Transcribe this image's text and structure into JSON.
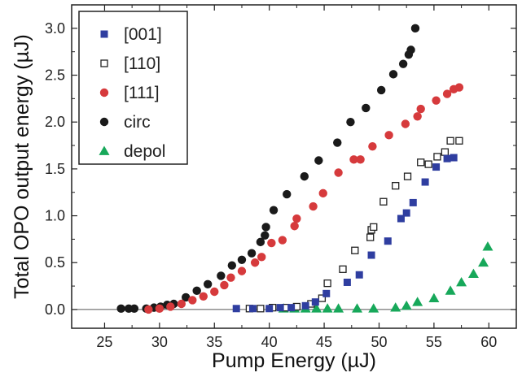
{
  "chart_data": {
    "type": "scatter",
    "xlabel": "Pump Energy (µJ)",
    "ylabel": "Total OPO output energy (µJ)",
    "xlim": [
      22,
      62.5
    ],
    "ylim": [
      -0.2,
      3.25
    ],
    "xticks": [
      "25",
      "30",
      "35",
      "40",
      "45",
      "50",
      "55",
      "60"
    ],
    "yticks": [
      "0.0",
      "0.5",
      "1.0",
      "1.5",
      "2.0",
      "2.5",
      "3.0"
    ],
    "grid": false,
    "legend_position": "top-left",
    "zero_line": true,
    "series": [
      {
        "name": "[001]",
        "marker": "square-filled",
        "color": "#2f3ea0",
        "x": [
          37,
          38.5,
          40,
          41,
          42,
          43.3,
          44.2,
          45.2,
          47.1,
          48.2,
          49.3,
          50.8,
          52.0,
          52.5,
          53.1,
          54.2,
          55.2,
          56.2,
          56.8
        ],
        "y": [
          0.01,
          0.01,
          0.01,
          0.02,
          0.02,
          0.04,
          0.08,
          0.17,
          0.29,
          0.37,
          0.58,
          0.73,
          0.97,
          1.03,
          1.14,
          1.36,
          1.52,
          1.61,
          1.62
        ]
      },
      {
        "name": "[110]",
        "marker": "square-open",
        "color": "#222222",
        "x": [
          38.2,
          39.2,
          40.3,
          41.5,
          42.5,
          43.8,
          44.8,
          45.3,
          46.7,
          47.8,
          49.2,
          49.3,
          49.5,
          50.4,
          51.5,
          52.6,
          53.8,
          54.5,
          55.3,
          56.0,
          56.5,
          57.3
        ],
        "y": [
          0.01,
          0.01,
          0.02,
          0.02,
          0.03,
          0.06,
          0.12,
          0.28,
          0.43,
          0.63,
          0.77,
          0.85,
          0.88,
          1.15,
          1.32,
          1.42,
          1.57,
          1.55,
          1.63,
          1.68,
          1.8,
          1.8
        ]
      },
      {
        "name": "[111]",
        "marker": "circle",
        "color": "#d63a3c",
        "x": [
          29,
          30,
          31,
          32,
          33,
          34,
          35,
          35.9,
          36.5,
          37.5,
          38.7,
          39.3,
          40.2,
          41.2,
          42.3,
          42.5,
          44,
          44.9,
          46.3,
          47.7,
          48.3,
          49.4,
          50.9,
          52.4,
          53.5,
          53.8,
          55.2,
          56.2,
          56.8,
          57.3
        ],
        "y": [
          0.0,
          0.01,
          0.03,
          0.06,
          0.1,
          0.14,
          0.19,
          0.26,
          0.34,
          0.41,
          0.5,
          0.56,
          0.71,
          0.74,
          0.89,
          0.97,
          1.1,
          1.24,
          1.46,
          1.6,
          1.6,
          1.74,
          1.86,
          1.98,
          2.06,
          2.14,
          2.23,
          2.3,
          2.35,
          2.37
        ]
      },
      {
        "name": "circ",
        "marker": "circle",
        "color": "#1a1a1a",
        "x": [
          26.5,
          27.2,
          27.7,
          28.8,
          29.5,
          30.1,
          30.7,
          31.3,
          32.4,
          33.4,
          34.4,
          35.6,
          36.6,
          37.5,
          38.4,
          39.2,
          39.6,
          39.7,
          40.4,
          41.6,
          43.2,
          44.5,
          46.2,
          47.4,
          48.8,
          50.2,
          51.3,
          52.2,
          52.7,
          52.9,
          53.3
        ],
        "y": [
          0.01,
          0.01,
          0.01,
          0.01,
          0.02,
          0.03,
          0.05,
          0.06,
          0.13,
          0.2,
          0.27,
          0.36,
          0.47,
          0.53,
          0.6,
          0.72,
          0.79,
          0.88,
          1.06,
          1.23,
          1.42,
          1.59,
          1.78,
          2.0,
          2.15,
          2.34,
          2.51,
          2.62,
          2.72,
          2.77,
          3.0
        ]
      },
      {
        "name": "depol",
        "marker": "triangle",
        "color": "#17a85a",
        "x": [
          41.3,
          42.3,
          43.3,
          44.3,
          45.3,
          46.3,
          48,
          49.5,
          51.5,
          52.5,
          53.5,
          55,
          56.5,
          57.5,
          58.6,
          59.5,
          59.9
        ],
        "y": [
          0.01,
          0.01,
          0.01,
          0.01,
          0.01,
          0.01,
          0.01,
          0.01,
          0.02,
          0.04,
          0.08,
          0.12,
          0.2,
          0.29,
          0.38,
          0.5,
          0.67
        ]
      }
    ]
  }
}
